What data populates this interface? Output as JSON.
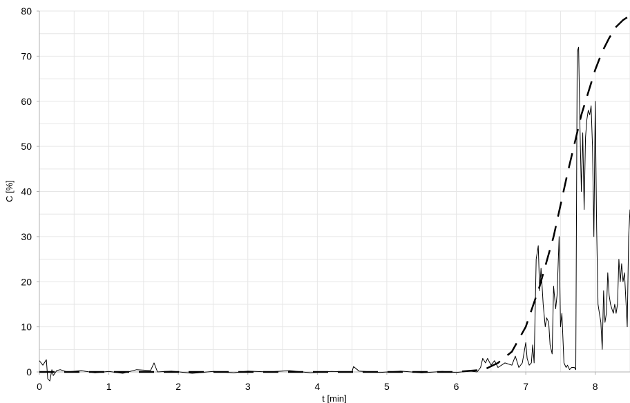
{
  "chart_data": {
    "type": "line",
    "title": "",
    "xlabel": "t [min]",
    "ylabel": "C [%]",
    "xlim": [
      0,
      8.5
    ],
    "ylim": [
      0,
      80
    ],
    "x_ticks": [
      0,
      1,
      2,
      3,
      4,
      5,
      6,
      7,
      8
    ],
    "y_ticks": [
      0,
      10,
      20,
      30,
      40,
      50,
      60,
      70,
      80
    ],
    "x_tick_labels": [
      "0",
      "1",
      "2",
      "3",
      "4",
      "5",
      "6",
      "7",
      "8"
    ],
    "y_tick_labels": [
      "0",
      "10",
      "20",
      "30",
      "40",
      "50",
      "60",
      "70",
      "80"
    ],
    "grid": true,
    "legend": "none",
    "colors": {
      "measured": "#000000",
      "model": "#000000",
      "grid": "#e6e6e6",
      "axis": "#b0b0b0"
    },
    "series": [
      {
        "style": "solid",
        "x": [
          0,
          0.05,
          0.1,
          0.12,
          0.15,
          0.18,
          0.2,
          0.25,
          0.3,
          0.4,
          0.6,
          0.8,
          1.0,
          1.2,
          1.4,
          1.6,
          1.65,
          1.7,
          1.9,
          2.2,
          2.5,
          2.8,
          3.0,
          3.3,
          3.6,
          3.9,
          4.2,
          4.5,
          4.52,
          4.6,
          4.9,
          5.2,
          5.5,
          5.8,
          6.0,
          6.2,
          6.3,
          6.35,
          6.38,
          6.42,
          6.45,
          6.5,
          6.55,
          6.6,
          6.7,
          6.8,
          6.85,
          6.9,
          6.95,
          7.0,
          7.02,
          7.05,
          7.08,
          7.1,
          7.12,
          7.15,
          7.18,
          7.2,
          7.22,
          7.25,
          7.28,
          7.3,
          7.33,
          7.35,
          7.38,
          7.4,
          7.43,
          7.45,
          7.48,
          7.5,
          7.52,
          7.55,
          7.58,
          7.6,
          7.63,
          7.66,
          7.7,
          7.72,
          7.74,
          7.76,
          7.78,
          7.8,
          7.82,
          7.84,
          7.86,
          7.88,
          7.9,
          7.92,
          7.94,
          7.96,
          7.98,
          8.0,
          8.02,
          8.04,
          8.06,
          8.08,
          8.1,
          8.12,
          8.14,
          8.16,
          8.18,
          8.2,
          8.22,
          8.24,
          8.26,
          8.28,
          8.3,
          8.32,
          8.34,
          8.36,
          8.38,
          8.4,
          8.42,
          8.44,
          8.46,
          8.48,
          8.5
        ],
        "values": [
          2.5,
          1.5,
          2.7,
          -1.5,
          -2.0,
          0.5,
          -0.8,
          0.3,
          0.5,
          0.0,
          0.3,
          -0.2,
          0.1,
          -0.3,
          0.5,
          0.3,
          2.0,
          0.0,
          0.2,
          -0.3,
          0.1,
          -0.2,
          0.2,
          0.0,
          0.3,
          -0.2,
          0.1,
          0.0,
          1.2,
          0.2,
          -0.1,
          0.2,
          -0.2,
          0.1,
          -0.1,
          0.2,
          0.0,
          1.0,
          3.0,
          2.0,
          3.0,
          1.5,
          2.5,
          1.0,
          2.0,
          1.5,
          3.5,
          1.0,
          2.0,
          6.5,
          3.0,
          1.5,
          2.0,
          6.0,
          2.0,
          25.0,
          28.0,
          18.0,
          23.0,
          15.0,
          10.0,
          12.0,
          11.0,
          6.0,
          4.0,
          19.0,
          14.0,
          17.0,
          30.0,
          10.0,
          13.0,
          2.0,
          1.0,
          1.5,
          0.5,
          1.0,
          1.0,
          0.5,
          71.0,
          72.0,
          54.0,
          40.0,
          53.0,
          36.0,
          52.0,
          56.0,
          58.0,
          57.0,
          59.0,
          50.0,
          30.0,
          60.0,
          32.0,
          15.0,
          13.0,
          11.0,
          5.0,
          18.0,
          11.0,
          13.0,
          22.0,
          17.0,
          15.0,
          14.0,
          13.0,
          15.0,
          13.0,
          15.0,
          25.0,
          20.0,
          24.0,
          20.0,
          22.0,
          16.0,
          10.0,
          30.0,
          36.0
        ]
      },
      {
        "style": "dashed",
        "x": [
          0,
          0.2,
          0.5,
          1.0,
          2.0,
          3.0,
          4.0,
          5.0,
          6.0,
          6.4,
          6.6,
          6.8,
          7.0,
          7.2,
          7.4,
          7.6,
          7.8,
          8.0,
          8.1,
          8.2,
          8.3,
          8.4,
          8.5
        ],
        "values": [
          0,
          0,
          0,
          0,
          0,
          0,
          0,
          0,
          0,
          0.5,
          2.0,
          4.5,
          10.0,
          19.0,
          30.0,
          44.0,
          57.0,
          67.0,
          71.0,
          74.0,
          76.5,
          78.0,
          79.0
        ]
      }
    ]
  }
}
